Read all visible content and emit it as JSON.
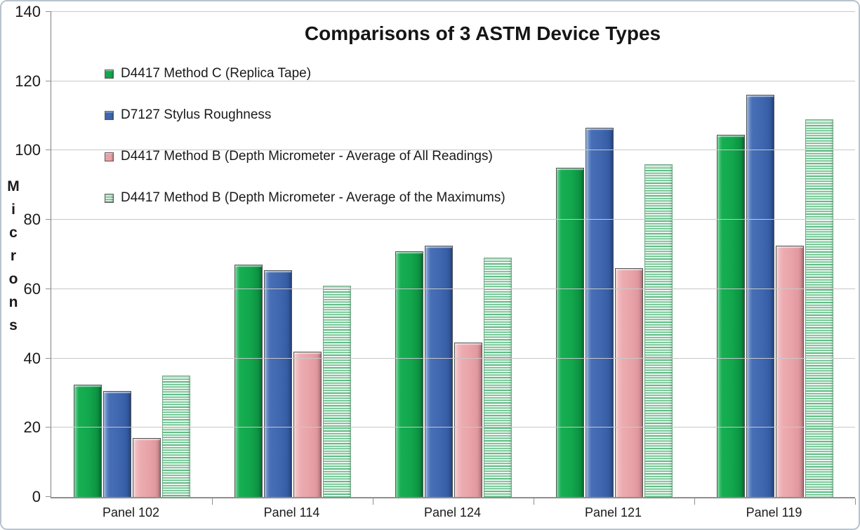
{
  "chart_data": {
    "type": "bar",
    "title": "Comparisons of 3 ASTM Device Types",
    "categories": [
      "Panel 102",
      "Panel 114",
      "Panel 124",
      "Panel 121",
      "Panel 119"
    ],
    "series": [
      {
        "name": "D4417 Method C (Replica Tape)",
        "color": "#12a74c",
        "pattern": "solid",
        "values": [
          32.5,
          67,
          71,
          95,
          104.5
        ]
      },
      {
        "name": "D7127 Stylus Roughness",
        "color": "#3e66ae",
        "pattern": "solid",
        "values": [
          30.5,
          65.5,
          72.5,
          106.5,
          116
        ]
      },
      {
        "name": "D4417 Method B (Depth Micrometer - Average of All Readings)",
        "color": "#e8a2a7",
        "pattern": "solid",
        "values": [
          17,
          42,
          44.5,
          66,
          72.5
        ]
      },
      {
        "name": "D4417 Method B (Depth Micrometer - Average of the Maximums)",
        "color": "#8fd3a8",
        "pattern": "horizontal-stripes",
        "values": [
          35,
          61,
          69,
          96,
          109
        ]
      }
    ],
    "xlabel": "",
    "ylabel": "Microns",
    "ylim": [
      0,
      140
    ],
    "yticks": [
      0,
      20,
      40,
      60,
      80,
      100,
      120,
      140
    ],
    "grid": true,
    "gridline_color": "#c8c8c8",
    "legend_position": "top-left-overlay"
  }
}
